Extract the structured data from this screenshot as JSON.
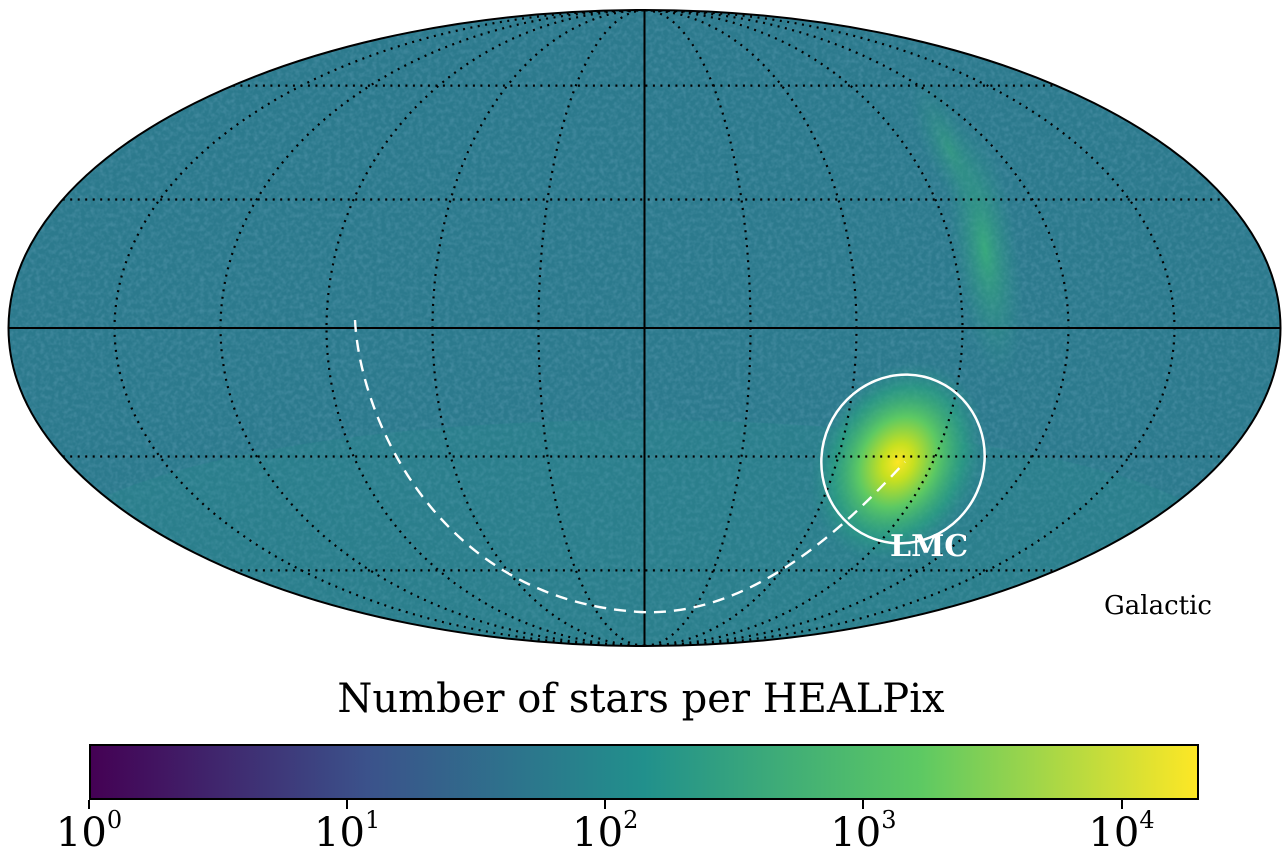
{
  "map": {
    "projection": "mollweide",
    "coordinate_frame_label": "Galactic",
    "region_label": "LMC",
    "graticule": "dotted",
    "colorscale": "viridis",
    "scale": "log"
  },
  "colorbar": {
    "title": "Number of stars per HEALPix",
    "tick_bases": [
      "10",
      "10",
      "10",
      "10",
      "10"
    ],
    "tick_exponents": [
      "0",
      "1",
      "2",
      "3",
      "4"
    ],
    "range_log10": [
      0,
      4.3
    ],
    "colors": [
      "#440154",
      "#3b528b",
      "#21908c",
      "#5dc963",
      "#fde725"
    ]
  }
}
